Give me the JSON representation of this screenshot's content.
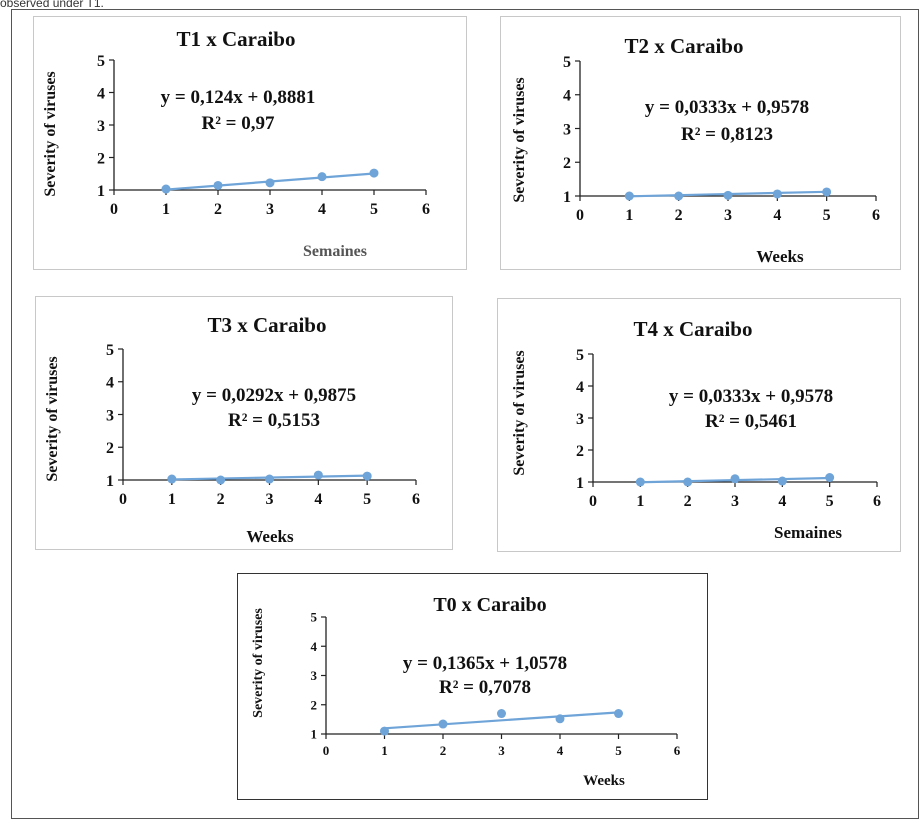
{
  "caption": "observed under T1.",
  "colors": {
    "series": "#6FA4D8",
    "axis": "#222222",
    "frame": "#c8c8c8",
    "outer_frame": "#555555"
  },
  "chart_data": [
    {
      "type": "scatter",
      "title": "T1 x Caraibo",
      "xlabel": "Semaines",
      "ylabel": "Severity of viruses",
      "equation": "y = 0,124x + 0,8881",
      "r2": "R² = 0,97",
      "xlim": [
        0,
        6
      ],
      "ylim": [
        1,
        5
      ],
      "xticks": [
        "0",
        "1",
        "2",
        "3",
        "4",
        "5",
        "6"
      ],
      "yticks": [
        "1",
        "2",
        "3",
        "4",
        "5"
      ],
      "x": [
        1,
        2,
        3,
        4,
        5
      ],
      "y": [
        1.03,
        1.14,
        1.22,
        1.41,
        1.52
      ],
      "trendline": {
        "slope": 0.124,
        "intercept": 0.8881
      },
      "xlabel_color": "#555555"
    },
    {
      "type": "scatter",
      "title": "T2 x Caraibo",
      "xlabel": "Weeks",
      "ylabel": "Severity of viruses",
      "equation": "y = 0,0333x + 0,9578",
      "r2": "R² = 0,8123",
      "xlim": [
        0,
        6
      ],
      "ylim": [
        1,
        5
      ],
      "xticks": [
        "0",
        "1",
        "2",
        "3",
        "4",
        "5",
        "6"
      ],
      "yticks": [
        "1",
        "2",
        "3",
        "4",
        "5"
      ],
      "x": [
        1,
        2,
        3,
        4,
        5
      ],
      "y": [
        1.0,
        1.0,
        1.02,
        1.06,
        1.12
      ],
      "trendline": {
        "slope": 0.0333,
        "intercept": 0.9578
      },
      "xlabel_color": "#111111"
    },
    {
      "type": "scatter",
      "title": "T3 x Caraibo",
      "xlabel": "Weeks",
      "ylabel": "Severity of viruses",
      "equation": "y = 0,0292x + 0,9875",
      "r2": "R² = 0,5153",
      "xlim": [
        0,
        6
      ],
      "ylim": [
        1,
        5
      ],
      "xticks": [
        "0",
        "1",
        "2",
        "3",
        "4",
        "5",
        "6"
      ],
      "yticks": [
        "1",
        "2",
        "3",
        "4",
        "5"
      ],
      "x": [
        1,
        2,
        3,
        4,
        5
      ],
      "y": [
        1.03,
        1.0,
        1.03,
        1.15,
        1.12
      ],
      "trendline": {
        "slope": 0.0292,
        "intercept": 0.9875
      },
      "xlabel_color": "#111111"
    },
    {
      "type": "scatter",
      "title": "T4 x Caraibo",
      "xlabel": "Semaines",
      "ylabel": "Severity of viruses",
      "equation": "y = 0,0333x + 0,9578",
      "r2": "R² = 0,5461",
      "xlim": [
        0,
        6
      ],
      "ylim": [
        1,
        5
      ],
      "xticks": [
        "0",
        "1",
        "2",
        "3",
        "4",
        "5",
        "6"
      ],
      "yticks": [
        "1",
        "2",
        "3",
        "4",
        "5"
      ],
      "x": [
        1,
        2,
        3,
        4,
        5
      ],
      "y": [
        1.0,
        1.0,
        1.1,
        1.03,
        1.14
      ],
      "trendline": {
        "slope": 0.0333,
        "intercept": 0.9578
      },
      "xlabel_color": "#111111"
    },
    {
      "type": "scatter",
      "title": "T0 x Caraibo",
      "xlabel": "Weeks",
      "ylabel": "Severity of viruses",
      "equation": "y = 0,1365x + 1,0578",
      "r2": "R² = 0,7078",
      "xlim": [
        0,
        6
      ],
      "ylim": [
        1,
        5
      ],
      "xticks": [
        "0",
        "1",
        "2",
        "3",
        "4",
        "5",
        "6"
      ],
      "yticks": [
        "1",
        "2",
        "3",
        "4",
        "5"
      ],
      "x": [
        1,
        2,
        3,
        4,
        5
      ],
      "y": [
        1.1,
        1.34,
        1.7,
        1.52,
        1.7
      ],
      "trendline": {
        "slope": 0.1365,
        "intercept": 1.0578
      },
      "xlabel_color": "#111111"
    }
  ]
}
